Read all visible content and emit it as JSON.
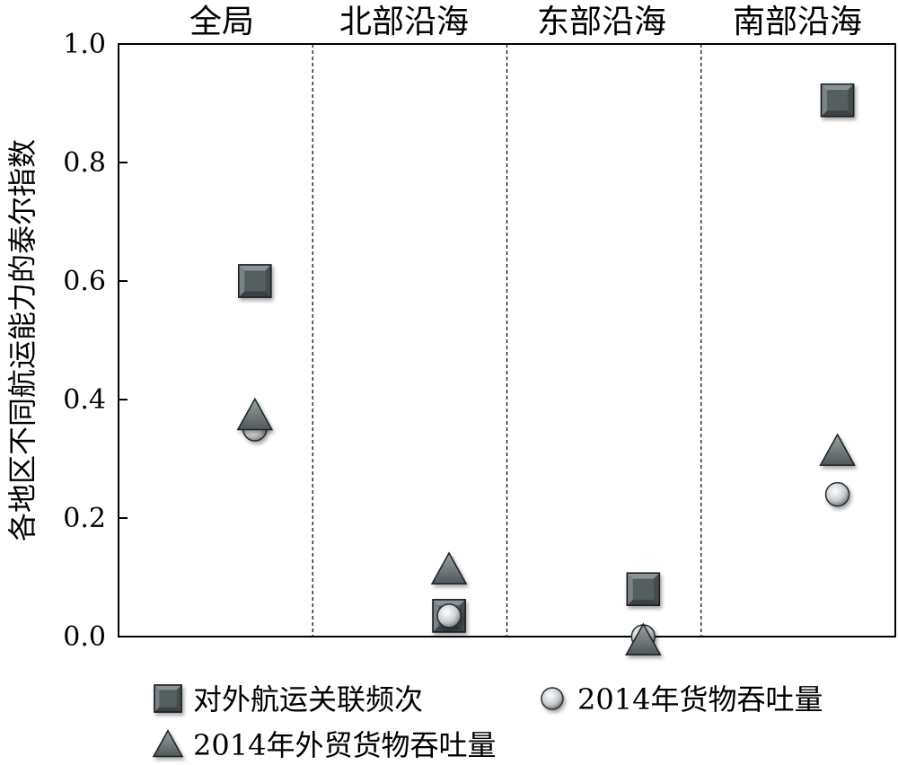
{
  "chart_data": {
    "type": "scatter",
    "categories": [
      "全局",
      "北部沿海",
      "东部沿海",
      "南部沿海"
    ],
    "ylabel": "各地区不同航运能力的泰尔指数",
    "xlabel": "",
    "ylim": [
      0.0,
      1.0
    ],
    "yticks": [
      0.0,
      0.2,
      0.4,
      0.6,
      0.8,
      1.0
    ],
    "ytick_labels": [
      "0.0",
      "0.2",
      "0.4",
      "0.6",
      "0.8",
      "1.0"
    ],
    "grid": false,
    "legend_position": "bottom",
    "series": [
      {
        "name": "对外航运关联频次",
        "marker": "square",
        "values": [
          0.6,
          0.035,
          0.08,
          0.905
        ]
      },
      {
        "name": "2014年货物吞吐量",
        "marker": "circle",
        "values": [
          0.35,
          0.035,
          0.0,
          0.24
        ]
      },
      {
        "name": "2014年外贸货物吞吐量",
        "marker": "triangle",
        "values": [
          0.37,
          0.11,
          -0.01,
          0.31
        ]
      }
    ],
    "colors": {
      "square_fill": "#5f6a6e",
      "square_inner": "#49524f",
      "circle_fill": "#cfd3d4",
      "triangle_fill": "#6e7679",
      "axis": "#000000"
    }
  }
}
